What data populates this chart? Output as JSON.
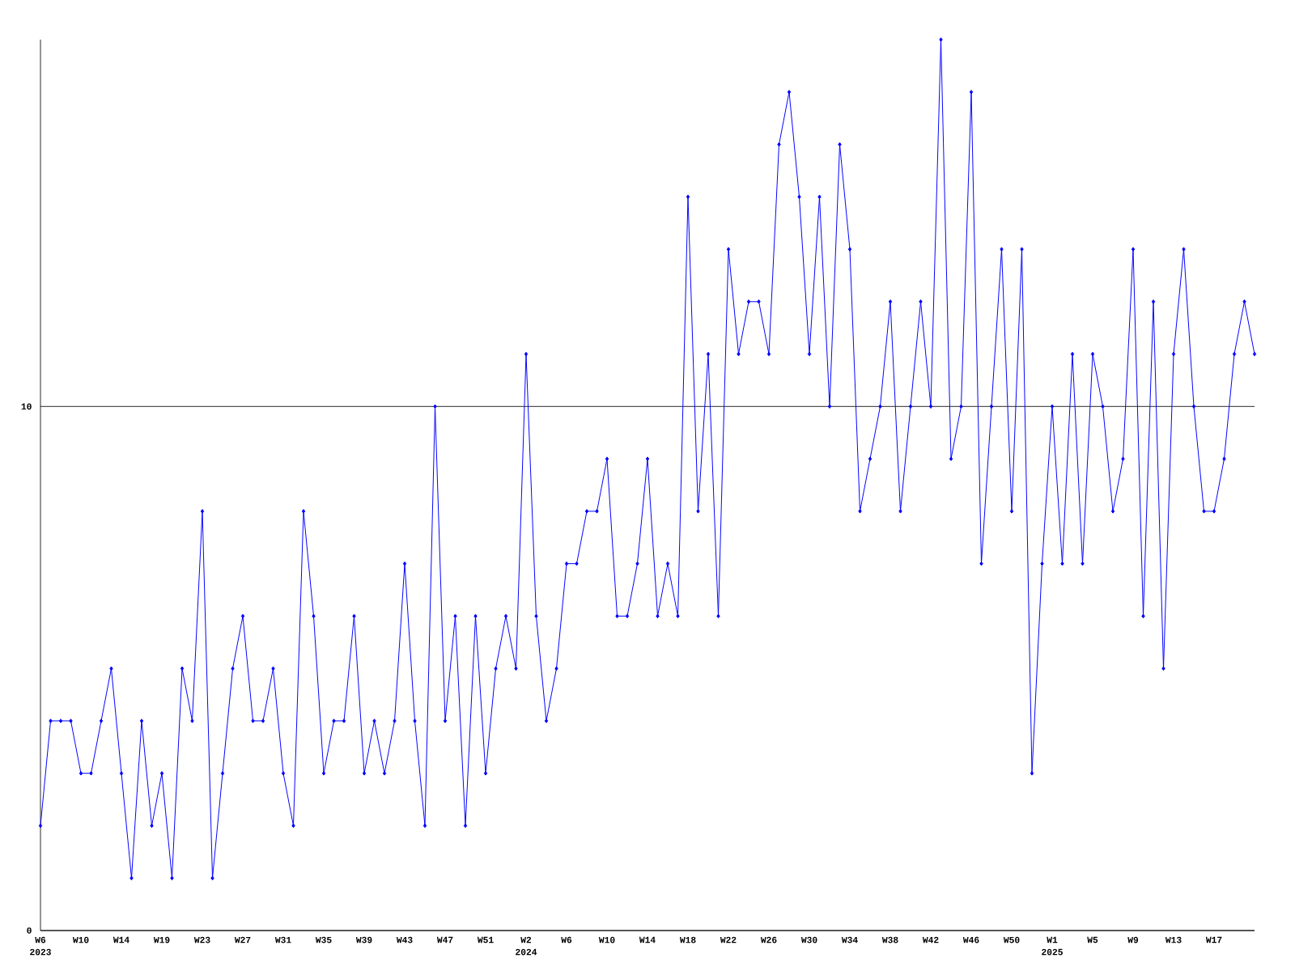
{
  "chart_data": {
    "type": "line",
    "categories": [
      "W6",
      null,
      null,
      null,
      "W10",
      null,
      null,
      null,
      "W14",
      null,
      null,
      null,
      "W19",
      null,
      null,
      null,
      "W23",
      null,
      null,
      null,
      "W27",
      null,
      null,
      null,
      "W31",
      null,
      null,
      null,
      "W35",
      null,
      null,
      null,
      "W39",
      null,
      null,
      null,
      "W43",
      null,
      null,
      null,
      "W47",
      null,
      null,
      null,
      "W51",
      null,
      null,
      null,
      "W2",
      null,
      null,
      null,
      "W6",
      null,
      null,
      null,
      "W10",
      null,
      null,
      null,
      "W14",
      null,
      null,
      null,
      "W18",
      null,
      null,
      null,
      "W22",
      null,
      null,
      null,
      "W26",
      null,
      null,
      null,
      "W30",
      null,
      null,
      null,
      "W34",
      null,
      null,
      null,
      "W38",
      null,
      null,
      null,
      "W42",
      null,
      null,
      null,
      "W46",
      null,
      null,
      null,
      "W50",
      null,
      null,
      null,
      "W1",
      null,
      null,
      null,
      "W5",
      null,
      null,
      null,
      "W9",
      null,
      null,
      null,
      "W13",
      null,
      null,
      null,
      "W17",
      null,
      null,
      null,
      null
    ],
    "series": [
      {
        "color": "#0000ff",
        "values": [
          2,
          4,
          4,
          4,
          3,
          3,
          4,
          5,
          3,
          1,
          4,
          2,
          3,
          1,
          5,
          4,
          8,
          1,
          3,
          5,
          6,
          4,
          4,
          5,
          3,
          2,
          8,
          6,
          3,
          4,
          4,
          6,
          3,
          4,
          3,
          4,
          7,
          4,
          2,
          10,
          4,
          6,
          2,
          6,
          3,
          5,
          6,
          5,
          11,
          6,
          4,
          5,
          7,
          7,
          8,
          8,
          9,
          6,
          6,
          7,
          9,
          6,
          7,
          6,
          14,
          8,
          11,
          6,
          13,
          11,
          12,
          12,
          11,
          15,
          16,
          14,
          11,
          14,
          10,
          15,
          13,
          8,
          9,
          10,
          12,
          8,
          10,
          12,
          10,
          17,
          9,
          10,
          16,
          7,
          10,
          13,
          8,
          13,
          3,
          7,
          10,
          7,
          11,
          7,
          11,
          10,
          8,
          9,
          13,
          6,
          12,
          5,
          11,
          13,
          10,
          8,
          8,
          9,
          11,
          12,
          11
        ]
      }
    ],
    "ylim": [
      0,
      17
    ],
    "yticks": [
      0,
      10
    ],
    "grid": "y",
    "marker": "diamond",
    "line_style": "solid",
    "annotations": [
      "2023",
      "2024",
      "2025"
    ]
  }
}
